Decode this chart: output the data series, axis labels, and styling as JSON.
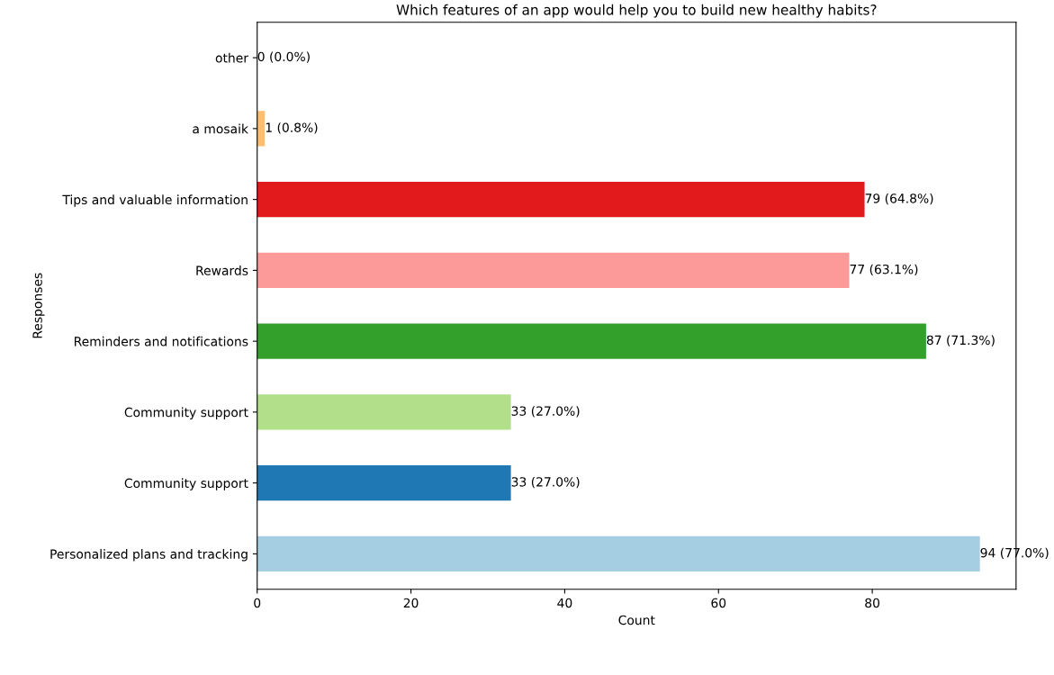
{
  "chart_data": {
    "type": "bar",
    "orientation": "horizontal",
    "title": "Which features of an app would help you to build new healthy habits?",
    "xlabel": "Count",
    "ylabel": "Responses",
    "categories": [
      "other",
      "a mosaik",
      "Tips and valuable information",
      "Rewards",
      "Reminders and notifications",
      "Community support",
      "Community support",
      "Personalized plans and tracking"
    ],
    "values": [
      0,
      1,
      79,
      77,
      87,
      33,
      33,
      94
    ],
    "colors": [
      "#b15928",
      "#fdbf6f",
      "#e31a1c",
      "#fb9a99",
      "#33a02c",
      "#b2df8a",
      "#1f78b4",
      "#a6cee3"
    ],
    "value_labels": [
      "0 (0.0%)",
      "1 (0.8%)",
      "79 (64.8%)",
      "77 (63.1%)",
      "87 (71.3%)",
      "33 (27.0%)",
      "33 (27.0%)",
      "94 (77.0%)"
    ],
    "xlim": [
      0,
      98.7
    ],
    "xticks": [
      0,
      20,
      40,
      60,
      80
    ],
    "grid": false,
    "legend": false
  }
}
